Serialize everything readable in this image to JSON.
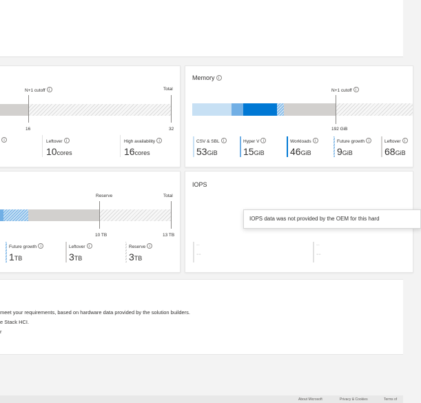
{
  "cpu": {
    "n1_cutoff_label": "N+1 cutoff",
    "total_label": "Total",
    "tick_16": "16",
    "tick_32": "32",
    "metrics": [
      {
        "name": "Leftover",
        "value": "10",
        "unit": "cores"
      },
      {
        "name": "High availability",
        "value": "16",
        "unit": "cores"
      }
    ]
  },
  "memory": {
    "title": "Memory",
    "n1_cutoff_label": "N+1 cutoff",
    "tick_192": "192 GiB",
    "metrics": [
      {
        "name": "CSV & SBL",
        "value": "53",
        "unit": "GiB"
      },
      {
        "name": "Hyper V",
        "value": "15",
        "unit": "GiB"
      },
      {
        "name": "Workloads",
        "value": "46",
        "unit": "GiB"
      },
      {
        "name": "Future growth",
        "value": "9",
        "unit": "GiB"
      },
      {
        "name": "Leftover",
        "value": "68",
        "unit": "GiB"
      }
    ]
  },
  "storage": {
    "reserve_label": "Reserve",
    "total_label": "Total",
    "tick_10": "10 TB",
    "tick_13": "13 TB",
    "metrics": [
      {
        "name": "Future growth",
        "value": "1",
        "unit": "TB"
      },
      {
        "name": "Leftover",
        "value": "3",
        "unit": "TB"
      },
      {
        "name": "Reserve",
        "value": "3",
        "unit": "TB"
      }
    ]
  },
  "iops": {
    "title": "IOPS",
    "tooltip": "IOPS data was not provided by the OEM for this hard",
    "placeholder_a": "--",
    "placeholder_b": "--"
  },
  "info": {
    "line1": "meet your requirements, based on hardware data provided by the solution builders.",
    "line2": "e Stack HCI.",
    "line3": "r"
  },
  "footer": {
    "about": "About Microsoft",
    "privacy": "Privacy & Cookies",
    "terms": "Terms of"
  },
  "colors": {
    "light_blue": "#c7e0f4",
    "mid_blue": "#71afe5",
    "dark_blue": "#0078d4",
    "grey_bar": "#d2d0ce"
  }
}
